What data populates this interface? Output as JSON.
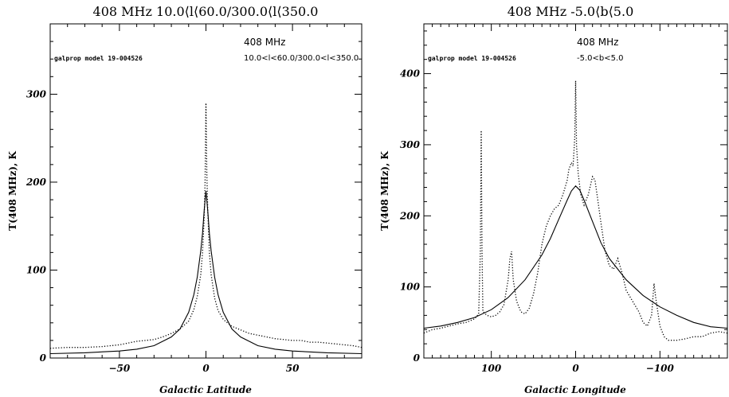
{
  "chart_data": [
    {
      "type": "line",
      "title": "408 MHz   10.0⟨l⟨60.0/300.0⟨l⟨350.0",
      "xlabel": "Galactic Latitude",
      "ylabel": "T(408 MHz), K",
      "xlim": [
        -90,
        90
      ],
      "ylim": [
        0,
        380
      ],
      "x_reversed": false,
      "xticks": [
        -50,
        0,
        50
      ],
      "yticks": [
        0,
        100,
        200,
        300
      ],
      "annotations": {
        "model": "galprop model 19-004526",
        "freq": "408 MHz",
        "range": "10.0<l<60.0/300.0<l<350.0"
      },
      "series": [
        {
          "style": "solid",
          "points": [
            [
              -90,
              5
            ],
            [
              -70,
              6
            ],
            [
              -50,
              8
            ],
            [
              -40,
              10
            ],
            [
              -30,
              14
            ],
            [
              -20,
              24
            ],
            [
              -15,
              33
            ],
            [
              -10,
              52
            ],
            [
              -7,
              72
            ],
            [
              -5,
              92
            ],
            [
              -3,
              122
            ],
            [
              -2,
              142
            ],
            [
              -1,
              168
            ],
            [
              0,
              190
            ],
            [
              1,
              168
            ],
            [
              2,
              142
            ],
            [
              3,
              122
            ],
            [
              5,
              92
            ],
            [
              7,
              72
            ],
            [
              10,
              52
            ],
            [
              15,
              33
            ],
            [
              20,
              24
            ],
            [
              30,
              14
            ],
            [
              40,
              10
            ],
            [
              50,
              8
            ],
            [
              70,
              6
            ],
            [
              90,
              5
            ]
          ]
        },
        {
          "style": "dotted",
          "points": [
            [
              -90,
              11
            ],
            [
              -80,
              12
            ],
            [
              -70,
              12
            ],
            [
              -60,
              13
            ],
            [
              -50,
              15
            ],
            [
              -45,
              17
            ],
            [
              -40,
              19
            ],
            [
              -35,
              20
            ],
            [
              -30,
              21
            ],
            [
              -25,
              24
            ],
            [
              -20,
              28
            ],
            [
              -15,
              33
            ],
            [
              -10,
              42
            ],
            [
              -7,
              55
            ],
            [
              -5,
              70
            ],
            [
              -3,
              95
            ],
            [
              -2,
              120
            ],
            [
              -1,
              160
            ],
            [
              -0.5,
              200
            ],
            [
              0,
              290
            ],
            [
              0.5,
              210
            ],
            [
              1,
              170
            ],
            [
              2,
              120
            ],
            [
              3,
              95
            ],
            [
              5,
              68
            ],
            [
              7,
              54
            ],
            [
              10,
              44
            ],
            [
              15,
              36
            ],
            [
              20,
              32
            ],
            [
              25,
              28
            ],
            [
              30,
              26
            ],
            [
              35,
              24
            ],
            [
              40,
              22
            ],
            [
              45,
              21
            ],
            [
              50,
              20
            ],
            [
              55,
              20
            ],
            [
              60,
              18
            ],
            [
              65,
              18
            ],
            [
              70,
              17
            ],
            [
              75,
              16
            ],
            [
              80,
              15
            ],
            [
              85,
              14
            ],
            [
              90,
              12
            ]
          ]
        }
      ]
    },
    {
      "type": "line",
      "title": "408 MHz   -5.0⟨b⟨5.0",
      "xlabel": "Galactic Longitude",
      "ylabel": "T(408 MHz), K",
      "xlim": [
        180,
        -180
      ],
      "ylim": [
        0,
        470
      ],
      "x_reversed": true,
      "xticks": [
        100,
        0,
        -100
      ],
      "yticks": [
        0,
        100,
        200,
        300,
        400
      ],
      "annotations": {
        "model": "galprop model 19-004526",
        "freq": "408 MHz",
        "range": "-5.0<b<5.0"
      },
      "series": [
        {
          "style": "solid",
          "points": [
            [
              180,
              42
            ],
            [
              160,
              45
            ],
            [
              140,
              50
            ],
            [
              120,
              57
            ],
            [
              100,
              68
            ],
            [
              80,
              85
            ],
            [
              60,
              110
            ],
            [
              40,
              145
            ],
            [
              30,
              168
            ],
            [
              20,
              195
            ],
            [
              10,
              222
            ],
            [
              5,
              235
            ],
            [
              0,
              242
            ],
            [
              -5,
              236
            ],
            [
              -10,
              222
            ],
            [
              -20,
              192
            ],
            [
              -30,
              162
            ],
            [
              -40,
              140
            ],
            [
              -60,
              110
            ],
            [
              -80,
              88
            ],
            [
              -100,
              72
            ],
            [
              -120,
              60
            ],
            [
              -140,
              50
            ],
            [
              -160,
              44
            ],
            [
              -180,
              42
            ]
          ]
        },
        {
          "style": "dotted",
          "points": [
            [
              180,
              35
            ],
            [
              170,
              40
            ],
            [
              160,
              42
            ],
            [
              150,
              45
            ],
            [
              140,
              48
            ],
            [
              130,
              50
            ],
            [
              120,
              55
            ],
            [
              115,
              62
            ],
            [
              113,
              150
            ],
            [
              112,
              320
            ],
            [
              111,
              150
            ],
            [
              110,
              65
            ],
            [
              105,
              60
            ],
            [
              100,
              58
            ],
            [
              95,
              60
            ],
            [
              90,
              65
            ],
            [
              85,
              75
            ],
            [
              80,
              110
            ],
            [
              78,
              140
            ],
            [
              76,
              150
            ],
            [
              74,
              110
            ],
            [
              70,
              80
            ],
            [
              65,
              65
            ],
            [
              60,
              62
            ],
            [
              55,
              70
            ],
            [
              50,
              90
            ],
            [
              45,
              120
            ],
            [
              40,
              160
            ],
            [
              35,
              185
            ],
            [
              30,
              200
            ],
            [
              25,
              210
            ],
            [
              20,
              215
            ],
            [
              15,
              230
            ],
            [
              10,
              250
            ],
            [
              8,
              265
            ],
            [
              5,
              275
            ],
            [
              3,
              270
            ],
            [
              1,
              310
            ],
            [
              0,
              390
            ],
            [
              -1,
              300
            ],
            [
              -3,
              260
            ],
            [
              -6,
              230
            ],
            [
              -10,
              215
            ],
            [
              -15,
              230
            ],
            [
              -20,
              255
            ],
            [
              -23,
              250
            ],
            [
              -26,
              225
            ],
            [
              -30,
              190
            ],
            [
              -35,
              150
            ],
            [
              -40,
              130
            ],
            [
              -45,
              125
            ],
            [
              -50,
              140
            ],
            [
              -55,
              120
            ],
            [
              -60,
              95
            ],
            [
              -65,
              85
            ],
            [
              -70,
              75
            ],
            [
              -75,
              65
            ],
            [
              -80,
              50
            ],
            [
              -85,
              45
            ],
            [
              -90,
              60
            ],
            [
              -93,
              105
            ],
            [
              -95,
              85
            ],
            [
              -100,
              45
            ],
            [
              -105,
              30
            ],
            [
              -110,
              25
            ],
            [
              -120,
              25
            ],
            [
              -130,
              27
            ],
            [
              -140,
              30
            ],
            [
              -150,
              30
            ],
            [
              -160,
              35
            ],
            [
              -170,
              37
            ],
            [
              -180,
              35
            ]
          ]
        }
      ]
    }
  ]
}
